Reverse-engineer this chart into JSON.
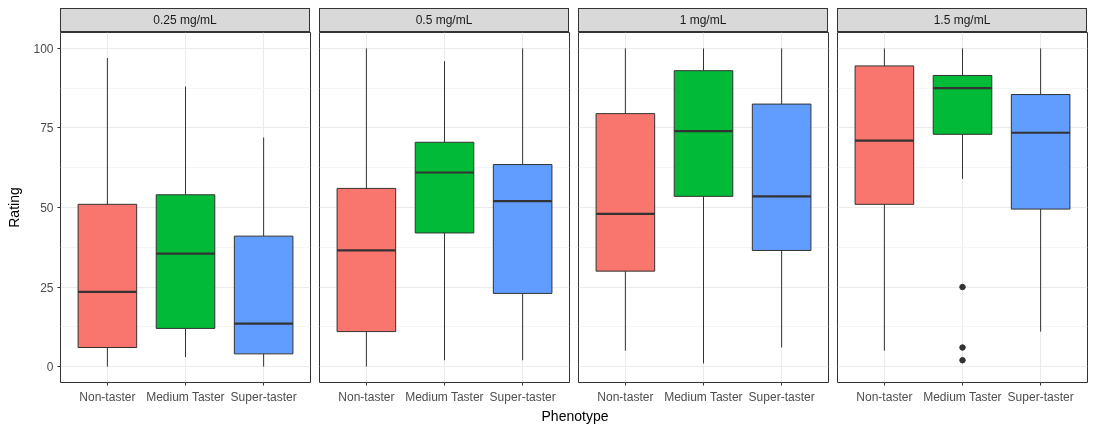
{
  "chart_data": [
    {
      "type": "box",
      "title": "0.25 mg/mL",
      "ylabel": "Rating",
      "categories": [
        "Non-taster",
        "Medium Taster",
        "Super-taster"
      ],
      "colors": [
        "#f8766d",
        "#00ba38",
        "#619cff"
      ],
      "boxes": [
        {
          "low": 0,
          "q1": 6,
          "median": 23.5,
          "q3": 51,
          "high": 97
        },
        {
          "low": 3,
          "q1": 12,
          "median": 35.5,
          "q3": 54,
          "high": 88
        },
        {
          "low": 0,
          "q1": 4,
          "median": 13.5,
          "q3": 41,
          "high": 72
        }
      ],
      "ylim": [
        -5,
        105
      ],
      "yticks": [
        0,
        25,
        50,
        75,
        100
      ],
      "grid": true
    },
    {
      "type": "box",
      "title": "0.5 mg/mL",
      "xlabel": "Phenotype",
      "categories": [
        "Non-taster",
        "Medium Taster",
        "Super-taster"
      ],
      "colors": [
        "#f8766d",
        "#00ba38",
        "#619cff"
      ],
      "boxes": [
        {
          "low": 0,
          "q1": 11,
          "median": 36.5,
          "q3": 56,
          "high": 100
        },
        {
          "low": 2,
          "q1": 42,
          "median": 61,
          "q3": 70.5,
          "high": 96
        },
        {
          "low": 2,
          "q1": 23,
          "median": 52,
          "q3": 63.5,
          "high": 100
        }
      ],
      "ylim": [
        -5,
        105
      ],
      "yticks": [
        0,
        25,
        50,
        75,
        100
      ],
      "grid": true,
      "tick_labels": "x"
    },
    {
      "type": "box",
      "title": "1 mg/mL",
      "categories": [
        "Non-taster",
        "Medium Taster",
        "Super-taster"
      ],
      "colors": [
        "#f8766d",
        "#00ba38",
        "#619cff"
      ],
      "boxes": [
        {
          "low": 5,
          "q1": 30,
          "median": 48,
          "q3": 79.5,
          "high": 100
        },
        {
          "low": 1,
          "q1": 53.5,
          "median": 74,
          "q3": 93,
          "high": 100
        },
        {
          "low": 6,
          "q1": 36.5,
          "median": 53.5,
          "q3": 82.5,
          "high": 100
        }
      ],
      "ylim": [
        -5,
        105
      ],
      "yticks": [
        0,
        25,
        50,
        75,
        100
      ],
      "grid": true,
      "tick_labels": "x"
    },
    {
      "type": "box",
      "title": "1.5 mg/mL",
      "categories": [
        "Non-taster",
        "Medium Taster",
        "Super-taster"
      ],
      "colors": [
        "#f8766d",
        "#00ba38",
        "#619cff"
      ],
      "boxes": [
        {
          "low": 5,
          "q1": 51,
          "median": 71,
          "q3": 94.5,
          "high": 100
        },
        {
          "low": 59,
          "q1": 73,
          "median": 87.5,
          "q3": 91.5,
          "high": 100,
          "outliers": [
            25,
            6,
            2
          ]
        },
        {
          "low": 11,
          "q1": 49.5,
          "median": 73.5,
          "q3": 85.5,
          "high": 100
        }
      ],
      "ylim": [
        -5,
        105
      ],
      "yticks": [
        0,
        25,
        50,
        75,
        100
      ],
      "grid": true,
      "tick_labels": "x"
    }
  ]
}
